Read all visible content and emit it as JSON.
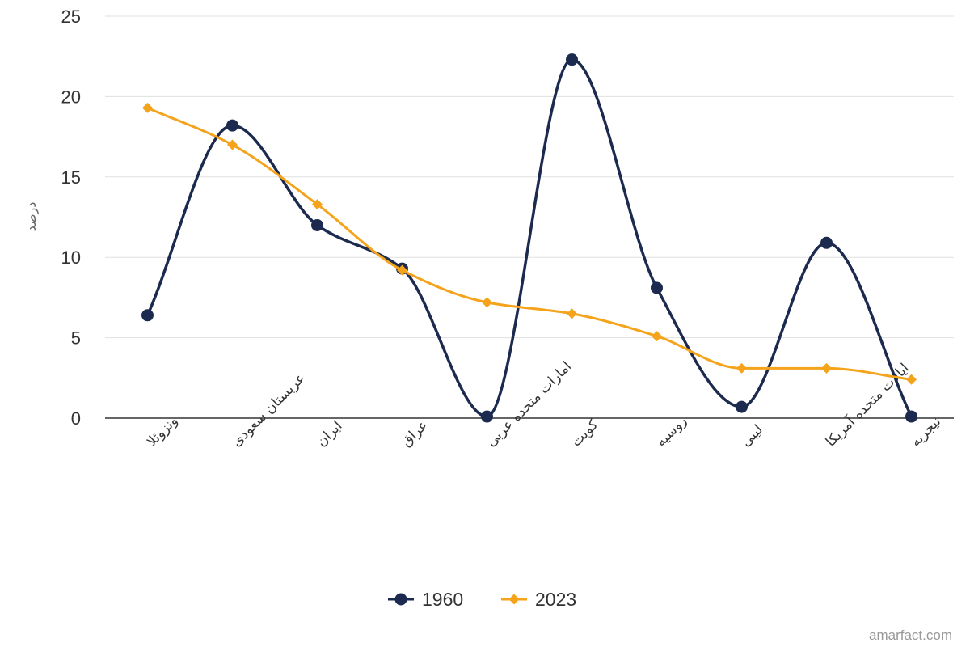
{
  "chart_data": {
    "type": "line",
    "categories": [
      "ونزوئلا",
      "عربستان سعودی",
      "ایران",
      "عراق",
      "امارات متحده عربی",
      "کویت",
      "روسیه",
      "لیبی",
      "ایالات متحده آمریکا",
      "نیجریه"
    ],
    "series": [
      {
        "name": "1960",
        "color": "#1b2a4e",
        "marker": "circle",
        "values": [
          6.4,
          18.2,
          12.0,
          9.3,
          0.1,
          22.3,
          8.1,
          0.7,
          10.9,
          0.1
        ]
      },
      {
        "name": "2023",
        "color": "#f5a31a",
        "marker": "diamond",
        "values": [
          19.3,
          17.0,
          13.3,
          9.2,
          7.2,
          6.5,
          5.1,
          3.1,
          3.1,
          2.4
        ]
      }
    ],
    "ylabel": "درصد",
    "ylim": [
      0,
      25
    ],
    "yticks": [
      0,
      5,
      10,
      15,
      20,
      25
    ],
    "grid": true,
    "smooth": true,
    "legend_position": "bottom-center"
  },
  "watermark": "amarfact.com"
}
